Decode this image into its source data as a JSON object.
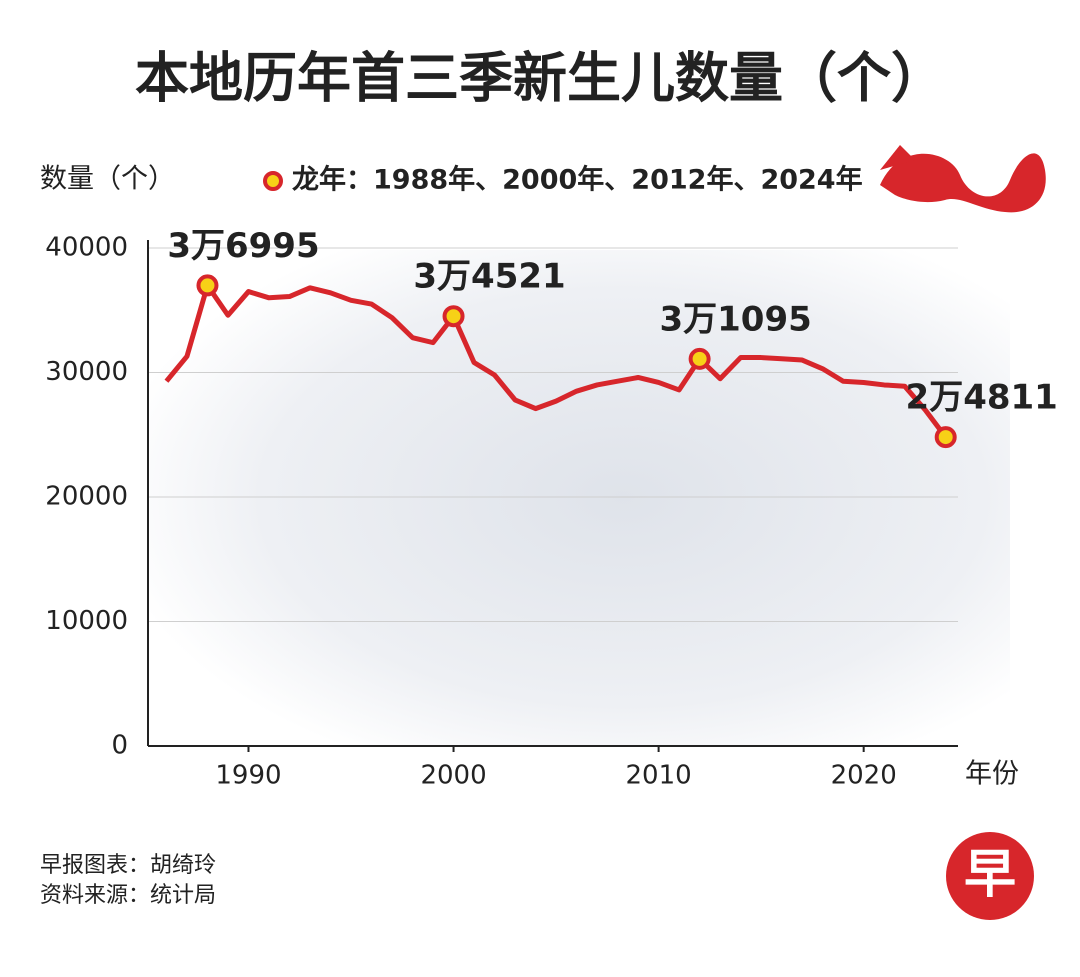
{
  "chart_data": {
    "type": "line",
    "title": "本地历年首三季新生儿数量（个）",
    "y_label": "数量（个）",
    "x_label": "年份",
    "x": [
      1986,
      1987,
      1988,
      1989,
      1990,
      1991,
      1992,
      1993,
      1994,
      1995,
      1996,
      1997,
      1998,
      1999,
      2000,
      2001,
      2002,
      2003,
      2004,
      2005,
      2006,
      2007,
      2008,
      2009,
      2010,
      2011,
      2012,
      2013,
      2014,
      2015,
      2016,
      2017,
      2018,
      2019,
      2020,
      2021,
      2022,
      2023,
      2024
    ],
    "series": [
      {
        "color": "#d7262b",
        "values": [
          29300,
          31300,
          36995,
          34600,
          36500,
          36000,
          36100,
          36800,
          36400,
          35800,
          35500,
          34400,
          32800,
          32400,
          34521,
          30800,
          29800,
          27800,
          27100,
          27700,
          28500,
          29000,
          29300,
          29600,
          29200,
          28600,
          31095,
          29500,
          31200,
          31200,
          31100,
          31000,
          30300,
          29300,
          29200,
          29000,
          28900,
          27000,
          24811
        ]
      }
    ],
    "highlights": {
      "name": "龙年：1988年、2000年、2012年、2024年",
      "color": "#f7d117",
      "x": [
        1988,
        2000,
        2012,
        2024
      ],
      "values": [
        36995,
        34521,
        31095,
        24811
      ],
      "value_labels": [
        "3万6995",
        "3万4521",
        "3万1095",
        "2万4811"
      ]
    },
    "xlim": [
      1985.1,
      2024.6
    ],
    "xticks": [
      1990,
      2000,
      2010,
      2020
    ],
    "ylim": [
      0,
      40000
    ],
    "yticks": [
      0,
      10000,
      20000,
      30000,
      40000
    ],
    "grid": true
  },
  "footer": {
    "credit": "早报图表：胡绮玲",
    "source": "资料来源：统计局",
    "logo": "早"
  }
}
